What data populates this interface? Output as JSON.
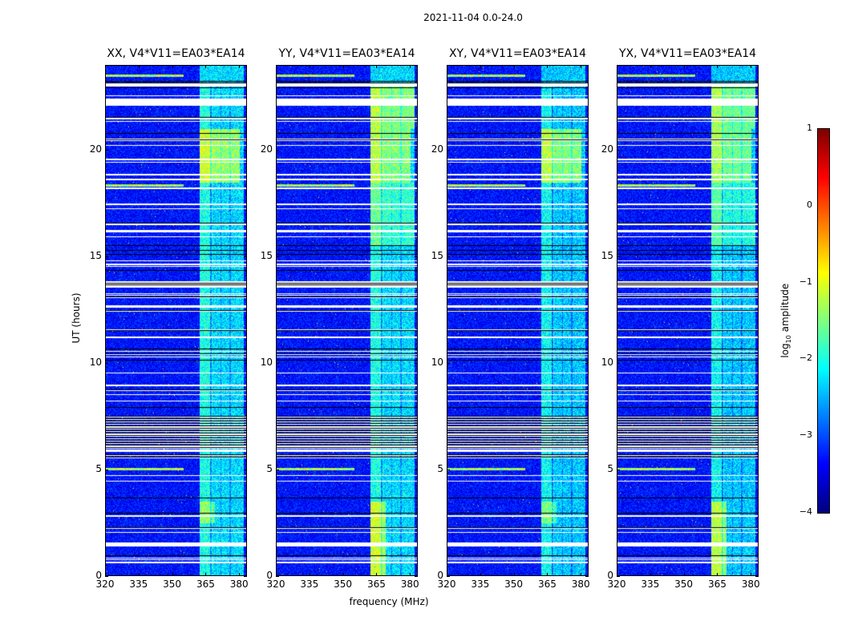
{
  "chart_data": {
    "type": "heatmap",
    "title": "2021-11-04 0.0-24.0",
    "xlabel": "frequency (MHz)",
    "ylabel": "UT (hours)",
    "xlim": [
      320,
      383.5
    ],
    "ylim": [
      0,
      24
    ],
    "xticks": [
      "320",
      "335",
      "350",
      "365",
      "380"
    ],
    "xtick_values": [
      320,
      335,
      350,
      365,
      380
    ],
    "yticks": [
      "0",
      "5",
      "10",
      "15",
      "20"
    ],
    "ytick_values": [
      0,
      5,
      10,
      15,
      20
    ],
    "panels": [
      {
        "title": "XX, V4*V11=EA03*EA14"
      },
      {
        "title": "YY, V4*V11=EA03*EA14"
      },
      {
        "title": "XY, V4*V11=EA03*EA14"
      },
      {
        "title": "YX, V4*V11=EA03*EA14"
      }
    ],
    "colorbar": {
      "label": "log10 amplitude",
      "label_main": "log",
      "label_sub": "10",
      "label_rest": " amplitude",
      "colormap": "jet",
      "range": [
        -4,
        1
      ],
      "ticks": [
        "1",
        "0",
        "−1",
        "−2",
        "−3",
        "−4"
      ],
      "tick_values": [
        1,
        0,
        -1,
        -2,
        -3,
        -4
      ]
    },
    "background_level": -3.3,
    "rfi_bands_mhz": [
      [
        362,
        368
      ],
      [
        368,
        382
      ]
    ]
  }
}
